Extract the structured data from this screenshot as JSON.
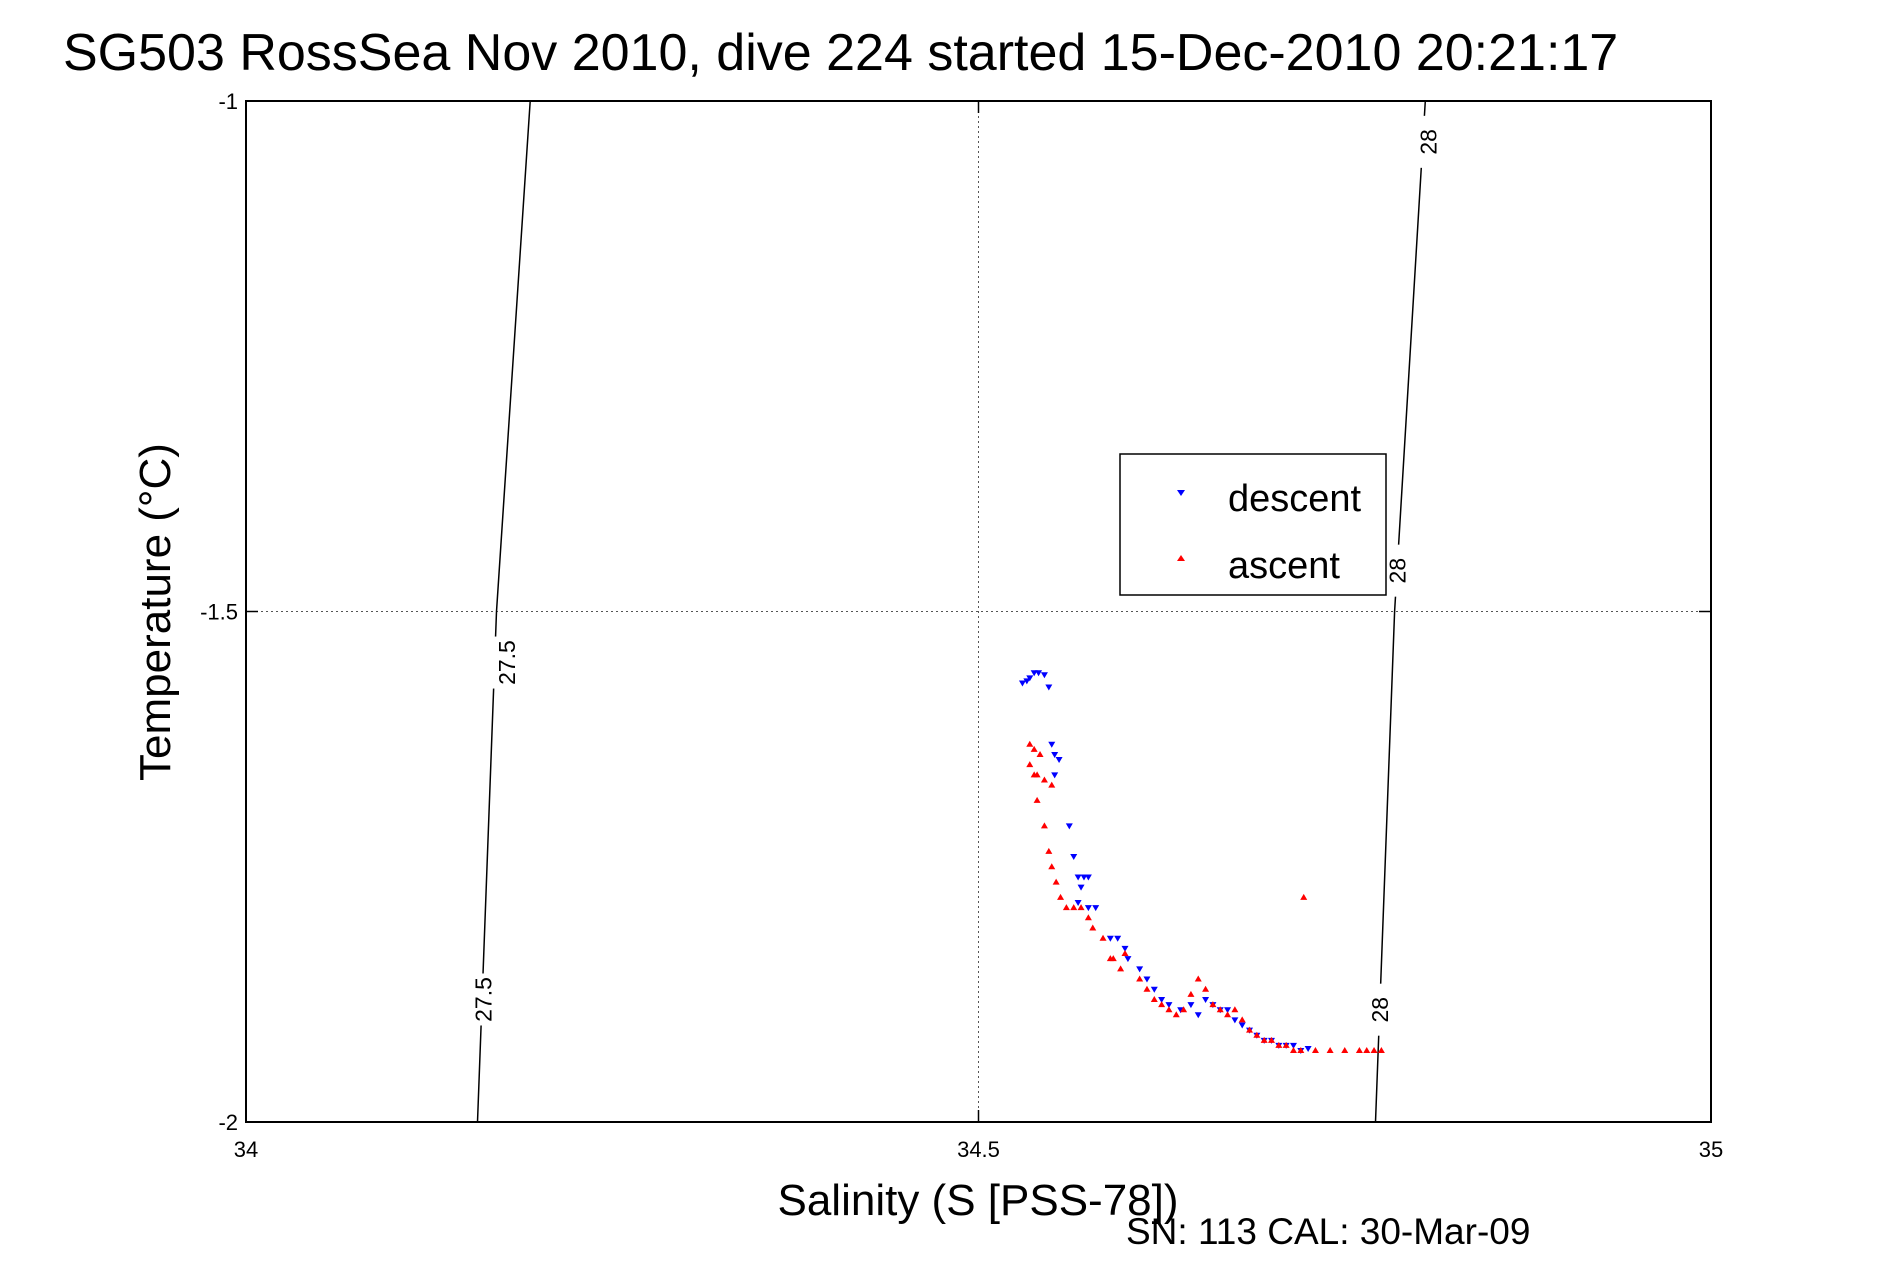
{
  "chart_data": {
    "type": "scatter",
    "title": "SG503 RossSea Nov 2010, dive 224 started 15-Dec-2010 20:21:17",
    "xlabel": "Salinity (S [PSS-78])",
    "ylabel": "Temperature (°C)",
    "xlim": [
      34,
      35
    ],
    "ylim": [
      -2,
      -1
    ],
    "xticks": [
      "34",
      "34.5",
      "35"
    ],
    "yticks": [
      "-1",
      "-1.5",
      "-2"
    ],
    "grid": true,
    "legend_position": "center-right",
    "footer": "SN: 113  CAL: 30-Mar-09",
    "density_contours": [
      {
        "label": "27.5",
        "points": [
          [
            34.194,
            -1.0
          ],
          [
            34.171,
            -1.5
          ],
          [
            34.158,
            -2.0
          ]
        ],
        "label_positions": [
          [
            34.178,
            -1.55
          ],
          [
            34.162,
            -1.88
          ]
        ]
      },
      {
        "label": "28",
        "points": [
          [
            34.805,
            -1.0
          ],
          [
            34.784,
            -1.5
          ],
          [
            34.771,
            -2.0
          ]
        ],
        "label_positions": [
          [
            34.807,
            -1.04
          ],
          [
            34.786,
            -1.46
          ],
          [
            34.774,
            -1.89
          ]
        ]
      }
    ],
    "series": [
      {
        "name": "descent",
        "color": "#0000ff",
        "marker": "triangle-down",
        "points": [
          [
            34.53,
            -1.57
          ],
          [
            34.535,
            -1.565
          ],
          [
            34.538,
            -1.56
          ],
          [
            34.541,
            -1.56
          ],
          [
            34.533,
            -1.568
          ],
          [
            34.545,
            -1.562
          ],
          [
            34.548,
            -1.574
          ],
          [
            34.55,
            -1.63
          ],
          [
            34.552,
            -1.64
          ],
          [
            34.555,
            -1.645
          ],
          [
            34.552,
            -1.66
          ],
          [
            34.562,
            -1.71
          ],
          [
            34.565,
            -1.74
          ],
          [
            34.568,
            -1.76
          ],
          [
            34.572,
            -1.76
          ],
          [
            34.575,
            -1.76
          ],
          [
            34.57,
            -1.77
          ],
          [
            34.568,
            -1.785
          ],
          [
            34.575,
            -1.79
          ],
          [
            34.58,
            -1.79
          ],
          [
            34.59,
            -1.82
          ],
          [
            34.595,
            -1.82
          ],
          [
            34.6,
            -1.83
          ],
          [
            34.602,
            -1.84
          ],
          [
            34.61,
            -1.85
          ],
          [
            34.615,
            -1.86
          ],
          [
            34.62,
            -1.87
          ],
          [
            34.625,
            -1.88
          ],
          [
            34.63,
            -1.885
          ],
          [
            34.638,
            -1.89
          ],
          [
            34.645,
            -1.885
          ],
          [
            34.65,
            -1.895
          ],
          [
            34.655,
            -1.88
          ],
          [
            34.66,
            -1.885
          ],
          [
            34.665,
            -1.89
          ],
          [
            34.67,
            -1.89
          ],
          [
            34.675,
            -1.9
          ],
          [
            34.68,
            -1.905
          ],
          [
            34.685,
            -1.91
          ],
          [
            34.69,
            -1.915
          ],
          [
            34.695,
            -1.92
          ],
          [
            34.7,
            -1.92
          ],
          [
            34.705,
            -1.925
          ],
          [
            34.71,
            -1.925
          ],
          [
            34.715,
            -1.925
          ],
          [
            34.72,
            -1.93
          ],
          [
            34.725,
            -1.928
          ]
        ]
      },
      {
        "name": "ascent",
        "color": "#ff0000",
        "marker": "triangle-up",
        "points": [
          [
            34.535,
            -1.63
          ],
          [
            34.538,
            -1.635
          ],
          [
            34.542,
            -1.64
          ],
          [
            34.535,
            -1.65
          ],
          [
            34.538,
            -1.66
          ],
          [
            34.54,
            -1.66
          ],
          [
            34.545,
            -1.665
          ],
          [
            34.55,
            -1.67
          ],
          [
            34.54,
            -1.685
          ],
          [
            34.545,
            -1.71
          ],
          [
            34.548,
            -1.735
          ],
          [
            34.55,
            -1.75
          ],
          [
            34.553,
            -1.765
          ],
          [
            34.556,
            -1.78
          ],
          [
            34.56,
            -1.79
          ],
          [
            34.565,
            -1.79
          ],
          [
            34.57,
            -1.79
          ],
          [
            34.575,
            -1.8
          ],
          [
            34.578,
            -1.81
          ],
          [
            34.585,
            -1.82
          ],
          [
            34.59,
            -1.84
          ],
          [
            34.592,
            -1.84
          ],
          [
            34.597,
            -1.85
          ],
          [
            34.6,
            -1.835
          ],
          [
            34.61,
            -1.86
          ],
          [
            34.615,
            -1.87
          ],
          [
            34.62,
            -1.88
          ],
          [
            34.625,
            -1.885
          ],
          [
            34.63,
            -1.89
          ],
          [
            34.635,
            -1.895
          ],
          [
            34.64,
            -1.89
          ],
          [
            34.645,
            -1.875
          ],
          [
            34.65,
            -1.86
          ],
          [
            34.655,
            -1.87
          ],
          [
            34.66,
            -1.885
          ],
          [
            34.665,
            -1.89
          ],
          [
            34.67,
            -1.895
          ],
          [
            34.675,
            -1.89
          ],
          [
            34.68,
            -1.9
          ],
          [
            34.685,
            -1.91
          ],
          [
            34.69,
            -1.915
          ],
          [
            34.695,
            -1.92
          ],
          [
            34.7,
            -1.92
          ],
          [
            34.705,
            -1.925
          ],
          [
            34.71,
            -1.925
          ],
          [
            34.715,
            -1.93
          ],
          [
            34.72,
            -1.93
          ],
          [
            34.73,
            -1.93
          ],
          [
            34.74,
            -1.93
          ],
          [
            34.75,
            -1.93
          ],
          [
            34.76,
            -1.93
          ],
          [
            34.765,
            -1.93
          ],
          [
            34.77,
            -1.93
          ],
          [
            34.775,
            -1.93
          ],
          [
            34.722,
            -1.78
          ]
        ]
      }
    ]
  }
}
